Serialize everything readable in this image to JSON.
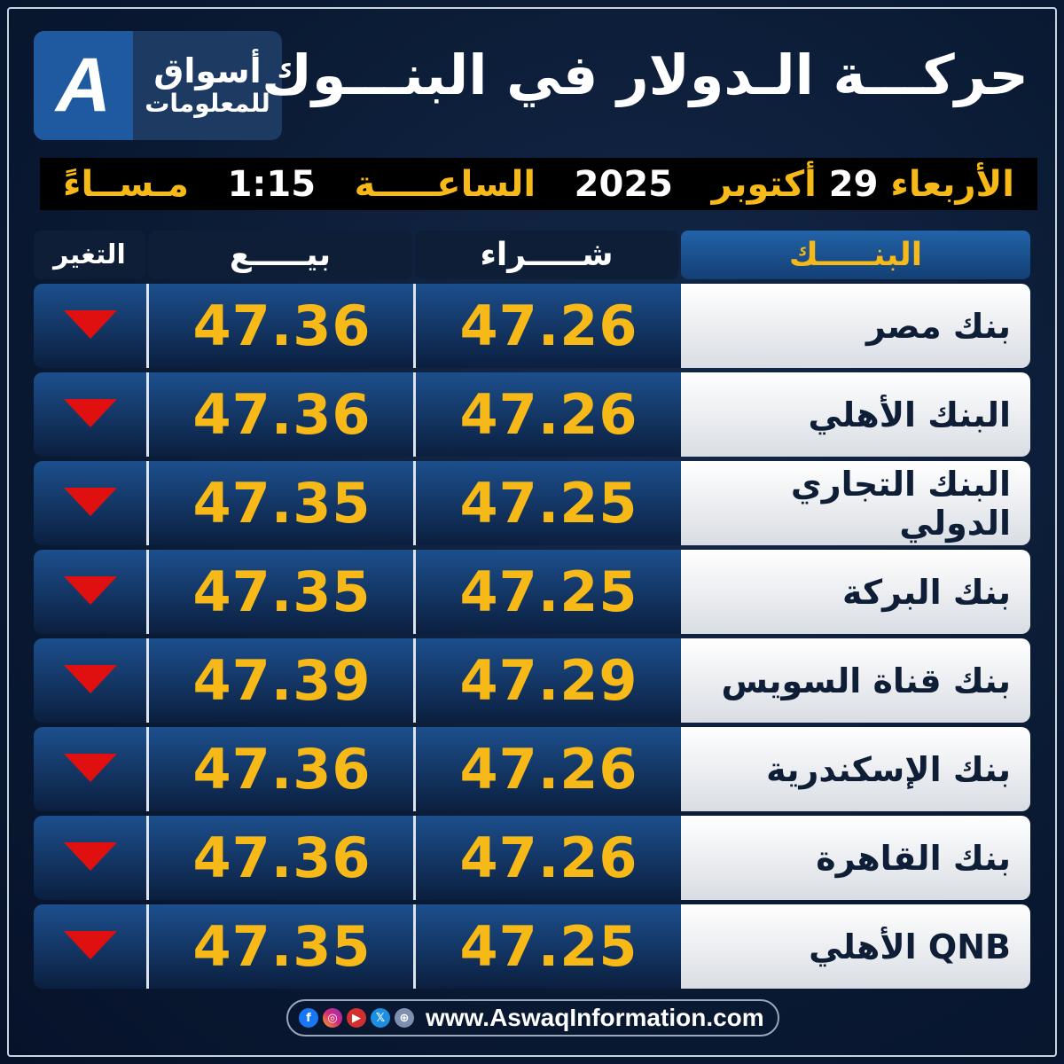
{
  "logo": {
    "mark": "A",
    "line1": "أسواق",
    "line2": "للمعلومات"
  },
  "title": "حركـــة الـدولار في البنـــوك",
  "datebar": {
    "day": "الأربعاء",
    "date_num": "29",
    "month": "أكتوبر",
    "year": "2025",
    "time_label": "الساعـــــة",
    "time": "1:15",
    "period": "مـســاءً"
  },
  "headers": {
    "bank": "البنـــــك",
    "buy": "شـــــراء",
    "sell": "بيـــــع",
    "change": "التغير"
  },
  "colors": {
    "accent": "#f6b917",
    "down": "#e01010",
    "background": "#0a1a33"
  },
  "rows": [
    {
      "bank": "بنك مصر",
      "buy": "47.26",
      "sell": "47.36",
      "change": "down"
    },
    {
      "bank": "البنك الأهلي",
      "buy": "47.26",
      "sell": "47.36",
      "change": "down"
    },
    {
      "bank": "البنك التجاري الدولي",
      "buy": "47.25",
      "sell": "47.35",
      "change": "down"
    },
    {
      "bank": "بنك البركة",
      "buy": "47.25",
      "sell": "47.35",
      "change": "down"
    },
    {
      "bank": "بنك قناة السويس",
      "buy": "47.29",
      "sell": "47.39",
      "change": "down"
    },
    {
      "bank": "بنك الإسكندرية",
      "buy": "47.26",
      "sell": "47.36",
      "change": "down"
    },
    {
      "bank": "بنك القاهرة",
      "buy": "47.26",
      "sell": "47.36",
      "change": "down"
    },
    {
      "bank": "QNB الأهلي",
      "buy": "47.25",
      "sell": "47.35",
      "change": "down"
    }
  ],
  "footer": {
    "icons": [
      "facebook-icon",
      "instagram-icon",
      "youtube-icon",
      "x-icon",
      "globe-icon"
    ],
    "url": "www.AswaqInformation.com"
  }
}
